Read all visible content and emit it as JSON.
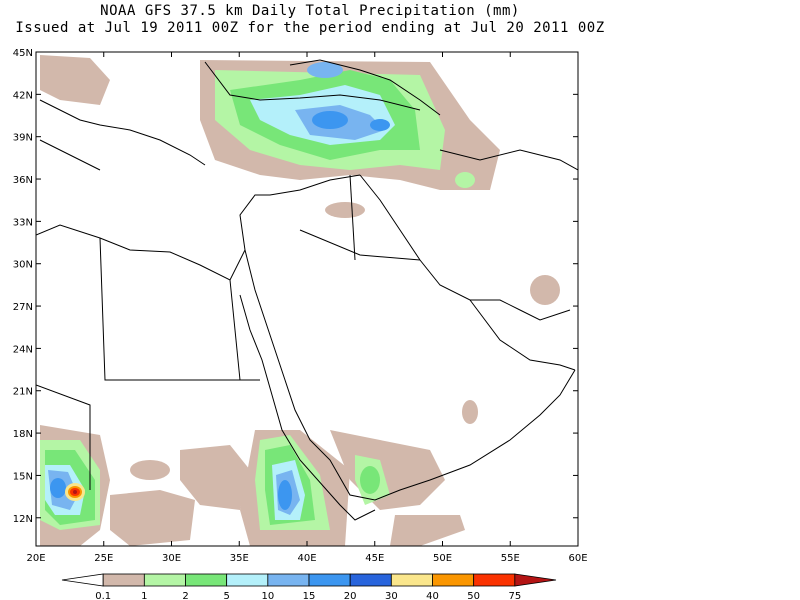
{
  "title_line1": "NOAA GFS 37.5 km Daily Total Precipitation (mm)",
  "title_line2": "Issued at Jul 19 2011 00Z for the period ending at Jul 20 2011 00Z",
  "map": {
    "lon_range": [
      20,
      60
    ],
    "lat_range": [
      10,
      45
    ],
    "x_ticks": [
      "20E",
      "25E",
      "30E",
      "35E",
      "40E",
      "45E",
      "50E",
      "55E",
      "60E"
    ],
    "y_ticks": [
      "12N",
      "15N",
      "18N",
      "21N",
      "24N",
      "27N",
      "30N",
      "33N",
      "36N",
      "39N",
      "42N",
      "45N"
    ]
  },
  "legend": {
    "labels": [
      "0.1",
      "1",
      "2",
      "5",
      "10",
      "15",
      "20",
      "30",
      "40",
      "50",
      "75"
    ],
    "colors": [
      "#ffffff",
      "#d2b8ab",
      "#b4f5a5",
      "#78e678",
      "#b4f0fa",
      "#78b4f0",
      "#3c96f0",
      "#2864dc",
      "#fae68c",
      "#fa9600",
      "#fa3200",
      "#b41414"
    ]
  }
}
